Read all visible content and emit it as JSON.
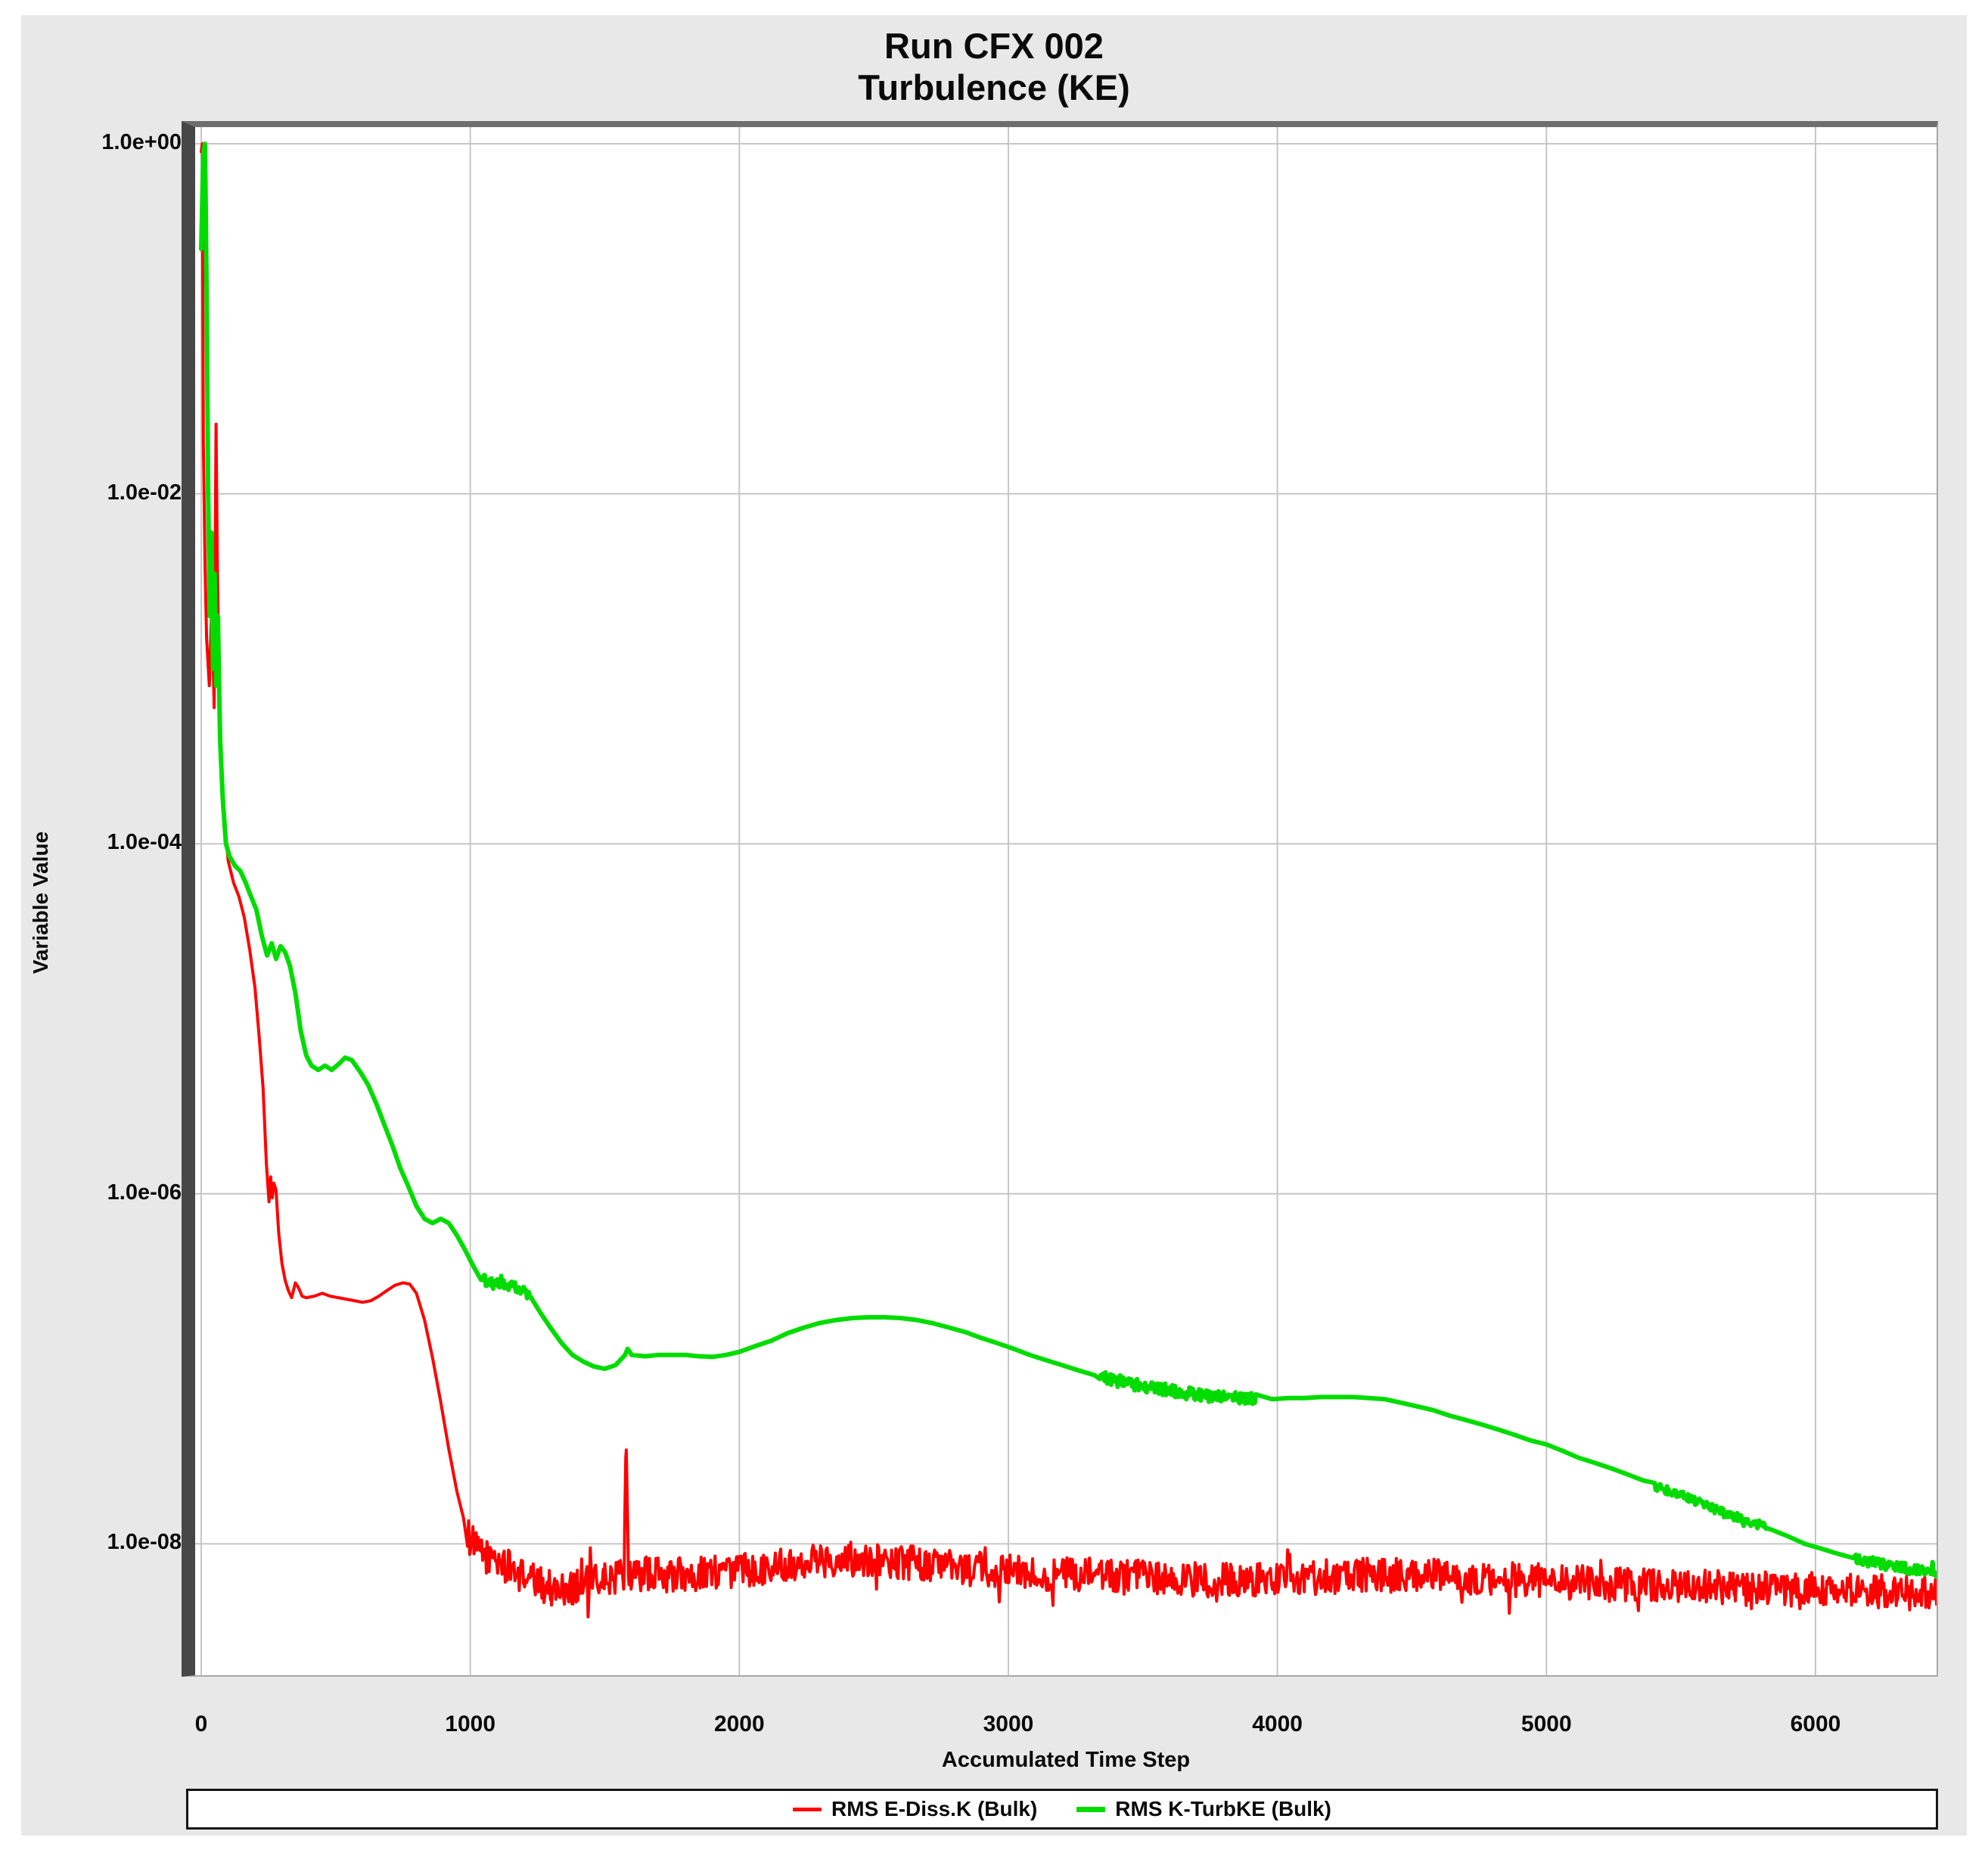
{
  "window": {
    "background": "#ffffff",
    "panel_background": "#e8e8e8",
    "grid_color": "#c6c6c6"
  },
  "chart_data": {
    "type": "line",
    "title": "Run CFX 002",
    "subtitle": "Turbulence (KE)",
    "xlabel": "Accumulated Time Step",
    "ylabel": "Variable Value",
    "y_axis_scale": "log",
    "grid": true,
    "legend_position": "bottom",
    "x_range": [
      0,
      6450
    ],
    "x_ticks": [
      0,
      1000,
      2000,
      3000,
      4000,
      5000,
      6000
    ],
    "y_ticks": [
      "1.0e+00",
      "1.0e-02",
      "1.0e-04",
      "1.0e-06",
      "1.0e-08"
    ],
    "y_tick_values": [
      1,
      0.01,
      0.0001,
      1e-06,
      1e-08
    ],
    "y_log10_range": [
      0,
      -8.75
    ],
    "series": [
      {
        "name": "RMS E-Diss.K (Bulk)",
        "color": "#ff0000",
        "width": 4,
        "noise": [
          {
            "from": 990,
            "to": 6450,
            "amp": 0.1,
            "step": 4
          }
        ],
        "points": [
          [
            0,
            0.9
          ],
          [
            4,
            1.0
          ],
          [
            8,
            0.02
          ],
          [
            14,
            0.004
          ],
          [
            20,
            0.0015
          ],
          [
            30,
            0.0008
          ],
          [
            40,
            0.0025
          ],
          [
            48,
            0.0006
          ],
          [
            55,
            0.025
          ],
          [
            60,
            0.004
          ],
          [
            66,
            0.0009
          ],
          [
            75,
            0.0003
          ],
          [
            85,
            0.00015
          ],
          [
            100,
            8e-05
          ],
          [
            120,
            6e-05
          ],
          [
            140,
            5e-05
          ],
          [
            160,
            3.8e-05
          ],
          [
            180,
            2.5e-05
          ],
          [
            200,
            1.5e-05
          ],
          [
            215,
            8e-06
          ],
          [
            230,
            4e-06
          ],
          [
            242,
            1.5e-06
          ],
          [
            252,
            9e-07
          ],
          [
            258,
            1.25e-06
          ],
          [
            264,
            9.5e-07
          ],
          [
            270,
            1.15e-06
          ],
          [
            278,
            1.05e-06
          ],
          [
            288,
            6e-07
          ],
          [
            300,
            4e-07
          ],
          [
            312,
            3.2e-07
          ],
          [
            324,
            2.8e-07
          ],
          [
            336,
            2.55e-07
          ],
          [
            350,
            3.1e-07
          ],
          [
            362,
            2.9e-07
          ],
          [
            375,
            2.6e-07
          ],
          [
            390,
            2.55e-07
          ],
          [
            420,
            2.6e-07
          ],
          [
            450,
            2.7e-07
          ],
          [
            480,
            2.6e-07
          ],
          [
            510,
            2.55e-07
          ],
          [
            540,
            2.5e-07
          ],
          [
            570,
            2.45e-07
          ],
          [
            600,
            2.4e-07
          ],
          [
            630,
            2.45e-07
          ],
          [
            660,
            2.6e-07
          ],
          [
            690,
            2.8e-07
          ],
          [
            720,
            3e-07
          ],
          [
            750,
            3.1e-07
          ],
          [
            775,
            3.05e-07
          ],
          [
            800,
            2.7e-07
          ],
          [
            830,
            1.9e-07
          ],
          [
            860,
            1.15e-07
          ],
          [
            890,
            6.5e-08
          ],
          [
            920,
            3.5e-08
          ],
          [
            950,
            2e-08
          ],
          [
            975,
            1.4e-08
          ],
          [
            1000,
            1.05e-08
          ],
          [
            1030,
            9e-09
          ],
          [
            1060,
            8.5e-09
          ],
          [
            1100,
            8e-09
          ],
          [
            1150,
            7.2e-09
          ],
          [
            1200,
            6.5e-09
          ],
          [
            1250,
            6e-09
          ],
          [
            1300,
            5.6e-09
          ],
          [
            1350,
            5.5e-09
          ],
          [
            1400,
            5.8e-09
          ],
          [
            1450,
            6e-09
          ],
          [
            1500,
            6.2e-09
          ],
          [
            1540,
            6.4e-09
          ],
          [
            1572,
            6.6e-09
          ],
          [
            1580,
            4.3e-08
          ],
          [
            1588,
            6.6e-09
          ],
          [
            1650,
            6.8e-09
          ],
          [
            1750,
            6.6e-09
          ],
          [
            1850,
            6.8e-09
          ],
          [
            1950,
            7e-09
          ],
          [
            2050,
            7.2e-09
          ],
          [
            2150,
            7.6e-09
          ],
          [
            2250,
            8e-09
          ],
          [
            2350,
            8.2e-09
          ],
          [
            2450,
            8.2e-09
          ],
          [
            2550,
            8e-09
          ],
          [
            2650,
            7.8e-09
          ],
          [
            2750,
            7.4e-09
          ],
          [
            2850,
            7.2e-09
          ],
          [
            2950,
            7e-09
          ],
          [
            3100,
            6.8e-09
          ],
          [
            3300,
            6.6e-09
          ],
          [
            3500,
            6.4e-09
          ],
          [
            3700,
            6.2e-09
          ],
          [
            3900,
            6.2e-09
          ],
          [
            4100,
            6.4e-09
          ],
          [
            4300,
            6.6e-09
          ],
          [
            4500,
            6.6e-09
          ],
          [
            4700,
            6.4e-09
          ],
          [
            4900,
            6.2e-09
          ],
          [
            5100,
            6e-09
          ],
          [
            5300,
            5.8e-09
          ],
          [
            5500,
            5.7e-09
          ],
          [
            5700,
            5.6e-09
          ],
          [
            5900,
            5.5e-09
          ],
          [
            6100,
            5.4e-09
          ],
          [
            6300,
            5.3e-09
          ],
          [
            6450,
            5.2e-09
          ]
        ]
      },
      {
        "name": "RMS K-TurbKE (Bulk)",
        "color": "#00dc00",
        "width": 6,
        "noise": [
          {
            "from": 1040,
            "to": 1220,
            "amp": 0.03,
            "step": 3
          },
          {
            "from": 3340,
            "to": 3920,
            "amp": 0.035,
            "step": 3
          },
          {
            "from": 5400,
            "to": 5820,
            "amp": 0.025,
            "step": 3
          },
          {
            "from": 6150,
            "to": 6450,
            "amp": 0.03,
            "step": 3
          }
        ],
        "points": [
          [
            0,
            0.25
          ],
          [
            8,
            0.9
          ],
          [
            14,
            1.0
          ],
          [
            20,
            0.15
          ],
          [
            26,
            0.01
          ],
          [
            32,
            0.002
          ],
          [
            38,
            0.006
          ],
          [
            44,
            0.001
          ],
          [
            50,
            0.0035
          ],
          [
            56,
            0.0008
          ],
          [
            62,
            0.002
          ],
          [
            70,
            0.0004
          ],
          [
            80,
            0.00018
          ],
          [
            92,
            0.0001
          ],
          [
            105,
            8.5e-05
          ],
          [
            125,
            7.5e-05
          ],
          [
            145,
            7e-05
          ],
          [
            165,
            6e-05
          ],
          [
            185,
            5e-05
          ],
          [
            205,
            4.2e-05
          ],
          [
            225,
            3e-05
          ],
          [
            245,
            2.3e-05
          ],
          [
            262,
            2.7e-05
          ],
          [
            278,
            2.2e-05
          ],
          [
            295,
            2.6e-05
          ],
          [
            312,
            2.4e-05
          ],
          [
            330,
            2e-05
          ],
          [
            350,
            1.4e-05
          ],
          [
            370,
            8.5e-06
          ],
          [
            390,
            6.2e-06
          ],
          [
            410,
            5.4e-06
          ],
          [
            435,
            5.1e-06
          ],
          [
            460,
            5.4e-06
          ],
          [
            485,
            5.1e-06
          ],
          [
            510,
            5.5e-06
          ],
          [
            535,
            6e-06
          ],
          [
            560,
            5.8e-06
          ],
          [
            590,
            5e-06
          ],
          [
            620,
            4.2e-06
          ],
          [
            650,
            3.3e-06
          ],
          [
            680,
            2.5e-06
          ],
          [
            710,
            1.9e-06
          ],
          [
            740,
            1.4e-06
          ],
          [
            770,
            1.1e-06
          ],
          [
            800,
            8.5e-07
          ],
          [
            830,
            7.2e-07
          ],
          [
            860,
            6.8e-07
          ],
          [
            890,
            7.2e-07
          ],
          [
            920,
            6.8e-07
          ],
          [
            950,
            5.8e-07
          ],
          [
            980,
            4.8e-07
          ],
          [
            1010,
            3.9e-07
          ],
          [
            1040,
            3.3e-07
          ],
          [
            1070,
            3.1e-07
          ],
          [
            1100,
            3.05e-07
          ],
          [
            1140,
            3e-07
          ],
          [
            1180,
            2.9e-07
          ],
          [
            1220,
            2.6e-07
          ],
          [
            1260,
            2.1e-07
          ],
          [
            1300,
            1.7e-07
          ],
          [
            1340,
            1.4e-07
          ],
          [
            1380,
            1.2e-07
          ],
          [
            1420,
            1.1e-07
          ],
          [
            1460,
            1.03e-07
          ],
          [
            1500,
            1e-07
          ],
          [
            1540,
            1.05e-07
          ],
          [
            1575,
            1.2e-07
          ],
          [
            1585,
            1.3e-07
          ],
          [
            1600,
            1.2e-07
          ],
          [
            1650,
            1.18e-07
          ],
          [
            1700,
            1.2e-07
          ],
          [
            1750,
            1.2e-07
          ],
          [
            1800,
            1.2e-07
          ],
          [
            1850,
            1.18e-07
          ],
          [
            1900,
            1.17e-07
          ],
          [
            1950,
            1.2e-07
          ],
          [
            2000,
            1.25e-07
          ],
          [
            2060,
            1.35e-07
          ],
          [
            2120,
            1.45e-07
          ],
          [
            2180,
            1.6e-07
          ],
          [
            2240,
            1.72e-07
          ],
          [
            2300,
            1.83e-07
          ],
          [
            2360,
            1.9e-07
          ],
          [
            2420,
            1.95e-07
          ],
          [
            2480,
            1.97e-07
          ],
          [
            2540,
            1.97e-07
          ],
          [
            2600,
            1.95e-07
          ],
          [
            2660,
            1.9e-07
          ],
          [
            2720,
            1.82e-07
          ],
          [
            2780,
            1.72e-07
          ],
          [
            2840,
            1.62e-07
          ],
          [
            2900,
            1.5e-07
          ],
          [
            2960,
            1.4e-07
          ],
          [
            3020,
            1.3e-07
          ],
          [
            3080,
            1.2e-07
          ],
          [
            3140,
            1.12e-07
          ],
          [
            3200,
            1.05e-07
          ],
          [
            3260,
            9.8e-08
          ],
          [
            3320,
            9.2e-08
          ],
          [
            3380,
            8.7e-08
          ],
          [
            3440,
            8.3e-08
          ],
          [
            3500,
            8e-08
          ],
          [
            3560,
            7.7e-08
          ],
          [
            3620,
            7.4e-08
          ],
          [
            3680,
            7.2e-08
          ],
          [
            3740,
            7e-08
          ],
          [
            3800,
            6.9e-08
          ],
          [
            3860,
            6.8e-08
          ],
          [
            3920,
            6.7e-08
          ],
          [
            3980,
            6.7e-08
          ],
          [
            4040,
            6.8e-08
          ],
          [
            4100,
            6.8e-08
          ],
          [
            4160,
            6.9e-08
          ],
          [
            4220,
            6.9e-08
          ],
          [
            4280,
            6.9e-08
          ],
          [
            4340,
            6.8e-08
          ],
          [
            4400,
            6.7e-08
          ],
          [
            4460,
            6.4e-08
          ],
          [
            4520,
            6.1e-08
          ],
          [
            4580,
            5.8e-08
          ],
          [
            4640,
            5.4e-08
          ],
          [
            4700,
            5.1e-08
          ],
          [
            4760,
            4.8e-08
          ],
          [
            4820,
            4.5e-08
          ],
          [
            4880,
            4.2e-08
          ],
          [
            4940,
            3.9e-08
          ],
          [
            5000,
            3.7e-08
          ],
          [
            5060,
            3.4e-08
          ],
          [
            5120,
            3.1e-08
          ],
          [
            5180,
            2.9e-08
          ],
          [
            5240,
            2.7e-08
          ],
          [
            5300,
            2.5e-08
          ],
          [
            5360,
            2.3e-08
          ],
          [
            5420,
            2.1e-08
          ],
          [
            5480,
            1.95e-08
          ],
          [
            5540,
            1.8e-08
          ],
          [
            5600,
            1.65e-08
          ],
          [
            5660,
            1.5e-08
          ],
          [
            5720,
            1.4e-08
          ],
          [
            5780,
            1.3e-08
          ],
          [
            5840,
            1.2e-08
          ],
          [
            5900,
            1.1e-08
          ],
          [
            5960,
            1e-08
          ],
          [
            6020,
            9.4e-09
          ],
          [
            6080,
            8.8e-09
          ],
          [
            6140,
            8.3e-09
          ],
          [
            6200,
            7.9e-09
          ],
          [
            6260,
            7.6e-09
          ],
          [
            6320,
            7.3e-09
          ],
          [
            6380,
            7.1e-09
          ],
          [
            6450,
            6.9e-09
          ]
        ]
      }
    ]
  }
}
